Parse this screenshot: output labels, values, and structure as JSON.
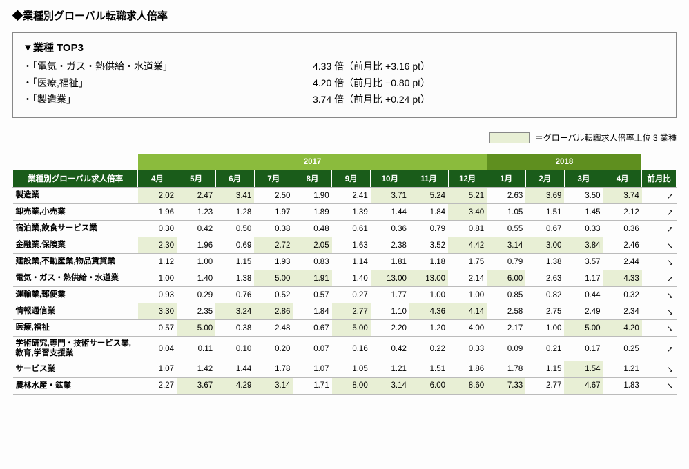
{
  "page_title": "◆業種別グローバル転職求人倍率",
  "top3": {
    "heading": "▼業種 TOP3",
    "rows": [
      {
        "label": "・「電気・ガス・熱供給・水道業」",
        "value": "4.33 倍（前月比  +3.16 pt）"
      },
      {
        "label": "・「医療,福祉」",
        "value": "4.20 倍（前月比  −0.80 pt）"
      },
      {
        "label": "・「製造業」",
        "value": "3.74 倍（前月比  +0.24 pt）"
      }
    ]
  },
  "legend": {
    "swatch_color": "#e8efd5",
    "text": "＝グローバル転職求人倍率上位 3 業種"
  },
  "table": {
    "header": {
      "rowhead": "業種別グローバル求人倍率",
      "year_2017": "2017",
      "year_2018": "2018",
      "months": [
        "4月",
        "5月",
        "6月",
        "7月",
        "8月",
        "9月",
        "10月",
        "11月",
        "12月",
        "1月",
        "2月",
        "3月",
        "4月"
      ],
      "trend": "前月比"
    },
    "colors": {
      "year_2017_bg": "#8bbb3d",
      "year_2018_bg": "#5f8f1f",
      "month_bg": "#1a5c1a",
      "highlight_bg": "#e8efd5",
      "header_text": "#ffffff"
    },
    "highlight_positions": [
      [
        0,
        0
      ],
      [
        0,
        1
      ],
      [
        0,
        2
      ],
      [
        0,
        6
      ],
      [
        0,
        7
      ],
      [
        0,
        8
      ],
      [
        0,
        10
      ],
      [
        0,
        12
      ],
      [
        1,
        8
      ],
      [
        3,
        0
      ],
      [
        3,
        3
      ],
      [
        3,
        4
      ],
      [
        3,
        8
      ],
      [
        3,
        9
      ],
      [
        3,
        10
      ],
      [
        3,
        11
      ],
      [
        5,
        3
      ],
      [
        5,
        4
      ],
      [
        5,
        6
      ],
      [
        5,
        7
      ],
      [
        5,
        9
      ],
      [
        5,
        12
      ],
      [
        7,
        0
      ],
      [
        7,
        2
      ],
      [
        7,
        3
      ],
      [
        7,
        5
      ],
      [
        7,
        7
      ],
      [
        7,
        8
      ],
      [
        8,
        1
      ],
      [
        8,
        5
      ],
      [
        8,
        11
      ],
      [
        8,
        12
      ],
      [
        10,
        11
      ],
      [
        11,
        1
      ],
      [
        11,
        2
      ],
      [
        11,
        3
      ],
      [
        11,
        5
      ],
      [
        11,
        6
      ],
      [
        11,
        7
      ],
      [
        11,
        8
      ],
      [
        11,
        9
      ],
      [
        11,
        11
      ]
    ],
    "rows": [
      {
        "label": "製造業",
        "values": [
          "2.02",
          "2.47",
          "3.41",
          "2.50",
          "1.90",
          "2.41",
          "3.71",
          "5.24",
          "5.21",
          "2.63",
          "3.69",
          "3.50",
          "3.74"
        ],
        "trend": "↗"
      },
      {
        "label": "卸売業,小売業",
        "values": [
          "1.96",
          "1.23",
          "1.28",
          "1.97",
          "1.89",
          "1.39",
          "1.44",
          "1.84",
          "3.40",
          "1.05",
          "1.51",
          "1.45",
          "2.12"
        ],
        "trend": "↗"
      },
      {
        "label": "宿泊業,飲食サービス業",
        "values": [
          "0.30",
          "0.42",
          "0.50",
          "0.38",
          "0.48",
          "0.61",
          "0.36",
          "0.79",
          "0.81",
          "0.55",
          "0.67",
          "0.33",
          "0.36"
        ],
        "trend": "↗"
      },
      {
        "label": "金融業,保険業",
        "values": [
          "2.30",
          "1.96",
          "0.69",
          "2.72",
          "2.05",
          "1.63",
          "2.38",
          "3.52",
          "4.42",
          "3.14",
          "3.00",
          "3.84",
          "2.46"
        ],
        "trend": "↘"
      },
      {
        "label": "建設業,不動産業,物品賃貸業",
        "values": [
          "1.12",
          "1.00",
          "1.15",
          "1.93",
          "0.83",
          "1.14",
          "1.81",
          "1.18",
          "1.75",
          "0.79",
          "1.38",
          "3.57",
          "2.44"
        ],
        "trend": "↘"
      },
      {
        "label": "電気・ガス・熱供給・水道業",
        "values": [
          "1.00",
          "1.40",
          "1.38",
          "5.00",
          "1.91",
          "1.40",
          "13.00",
          "13.00",
          "2.14",
          "6.00",
          "2.63",
          "1.17",
          "4.33"
        ],
        "trend": "↗"
      },
      {
        "label": "運輸業,郵便業",
        "values": [
          "0.93",
          "0.29",
          "0.76",
          "0.52",
          "0.57",
          "0.27",
          "1.77",
          "1.00",
          "1.00",
          "0.85",
          "0.82",
          "0.44",
          "0.32"
        ],
        "trend": "↘"
      },
      {
        "label": "情報通信業",
        "values": [
          "3.30",
          "2.35",
          "3.24",
          "2.86",
          "1.84",
          "2.77",
          "1.10",
          "4.36",
          "4.14",
          "2.58",
          "2.75",
          "2.49",
          "2.34"
        ],
        "trend": "↘"
      },
      {
        "label": "医療,福祉",
        "values": [
          "0.57",
          "5.00",
          "0.38",
          "2.48",
          "0.67",
          "5.00",
          "2.20",
          "1.20",
          "4.00",
          "2.17",
          "1.00",
          "5.00",
          "4.20"
        ],
        "trend": "↘"
      },
      {
        "label": "学術研究,専門・技術サービス業,\n教育,学習支援業",
        "values": [
          "0.04",
          "0.11",
          "0.10",
          "0.20",
          "0.07",
          "0.16",
          "0.42",
          "0.22",
          "0.33",
          "0.09",
          "0.21",
          "0.17",
          "0.25"
        ],
        "trend": "↗"
      },
      {
        "label": "サービス業",
        "values": [
          "1.07",
          "1.42",
          "1.44",
          "1.78",
          "1.07",
          "1.05",
          "1.21",
          "1.51",
          "1.86",
          "1.78",
          "1.15",
          "1.54",
          "1.21"
        ],
        "trend": "↘"
      },
      {
        "label": "農林水産・鉱業",
        "values": [
          "2.27",
          "3.67",
          "4.29",
          "3.14",
          "1.71",
          "8.00",
          "3.14",
          "6.00",
          "8.60",
          "7.33",
          "2.77",
          "4.67",
          "1.83"
        ],
        "trend": "↘"
      }
    ]
  }
}
